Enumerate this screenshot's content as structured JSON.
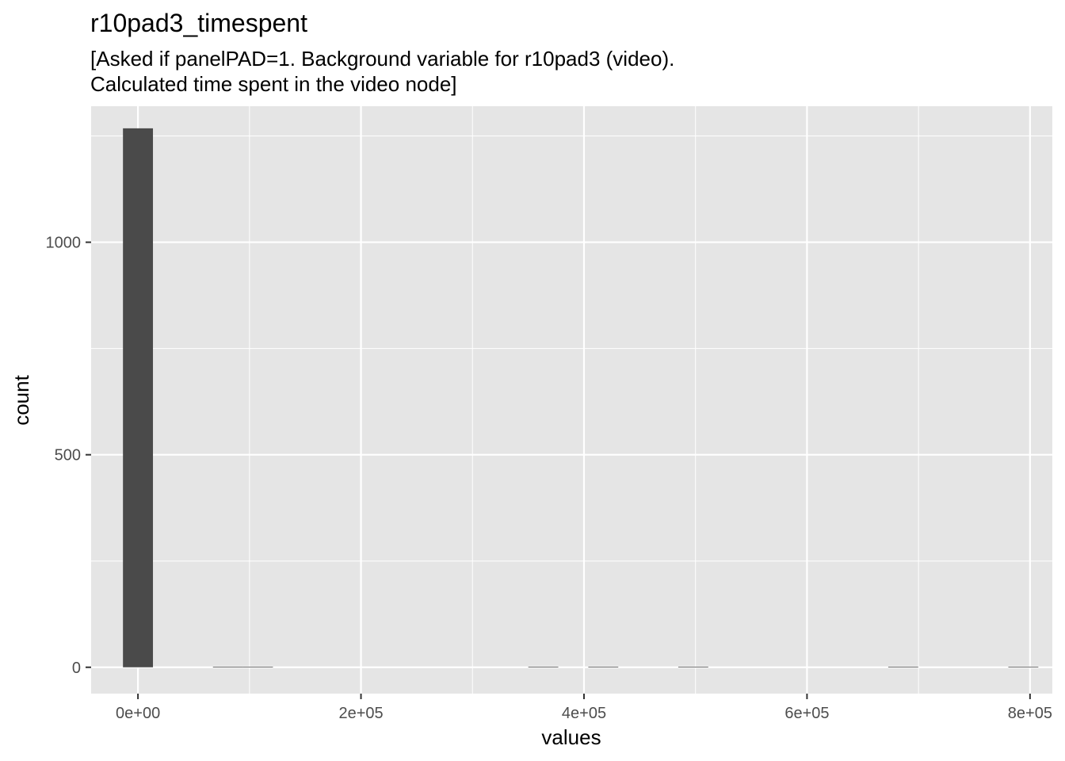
{
  "chart_data": {
    "type": "bar",
    "title": "r10pad3_timespent",
    "subtitle_lines": [
      "[Asked if panelPAD=1. Background variable for r10pad3 (video).",
      "Calculated time spent in the video node]"
    ],
    "xlabel": "values",
    "ylabel": "count",
    "xlim": [
      -42000,
      820000
    ],
    "ylim": [
      -62,
      1320
    ],
    "x_ticks": [
      {
        "value": 0,
        "label": "0e+00"
      },
      {
        "value": 200000,
        "label": "2e+05"
      },
      {
        "value": 400000,
        "label": "4e+05"
      },
      {
        "value": 600000,
        "label": "6e+05"
      },
      {
        "value": 800000,
        "label": "8e+05"
      }
    ],
    "y_ticks": [
      {
        "value": 0,
        "label": "0"
      },
      {
        "value": 500,
        "label": "500"
      },
      {
        "value": 1000,
        "label": "1000"
      }
    ],
    "bin_width": 26900,
    "bins": [
      {
        "x": 0,
        "count": 1268
      },
      {
        "x": 80700,
        "count": 1
      },
      {
        "x": 107600,
        "count": 1
      },
      {
        "x": 363500,
        "count": 1
      },
      {
        "x": 417300,
        "count": 1
      },
      {
        "x": 498000,
        "count": 1
      },
      {
        "x": 686300,
        "count": 1
      },
      {
        "x": 794000,
        "count": 1
      }
    ],
    "grid": true,
    "colors": {
      "panel_background": "#e5e5e5",
      "grid_major": "#ffffff",
      "bar_fill": "#4a4a4a",
      "tick_color": "#333333",
      "tick_label_color": "#4d4d4d"
    }
  }
}
